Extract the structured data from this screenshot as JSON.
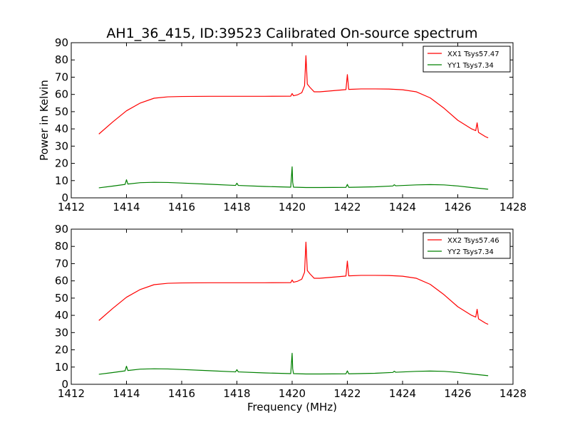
{
  "title": "AH1_36_415, ID:39523 Calibrated On-source spectrum",
  "chart_data": [
    {
      "type": "line",
      "xlabel": "",
      "ylabel": "Power in Kelvin",
      "xlim": [
        1412,
        1428
      ],
      "ylim": [
        0,
        90
      ],
      "xticks": [
        1412,
        1414,
        1416,
        1418,
        1420,
        1422,
        1424,
        1426,
        1428
      ],
      "yticks": [
        0,
        10,
        20,
        30,
        40,
        50,
        60,
        70,
        80,
        90
      ],
      "legend_position": "top-right",
      "grid": false,
      "series": [
        {
          "name": "XX1 Tsys57.47",
          "color": "#ff0000",
          "x": [
            1413.0,
            1413.5,
            1414.0,
            1414.5,
            1415.0,
            1415.5,
            1416.0,
            1417.0,
            1418.0,
            1419.0,
            1419.95,
            1420.0,
            1420.05,
            1420.2,
            1420.35,
            1420.45,
            1420.5,
            1420.55,
            1420.65,
            1420.8,
            1421.0,
            1421.5,
            1421.95,
            1422.0,
            1422.05,
            1422.5,
            1423.0,
            1423.5,
            1424.0,
            1424.5,
            1425.0,
            1425.5,
            1426.0,
            1426.5,
            1426.65,
            1426.7,
            1426.75,
            1427.0,
            1427.1
          ],
          "y": [
            37,
            44,
            50.5,
            55,
            57.8,
            58.6,
            58.8,
            58.9,
            58.9,
            58.9,
            59,
            60.5,
            59.2,
            59.8,
            61,
            65,
            82.5,
            66,
            64,
            61.5,
            61.5,
            62.2,
            62.8,
            71.5,
            62.9,
            63.2,
            63.2,
            63.1,
            62.7,
            61.5,
            58,
            52,
            45,
            40,
            39,
            43.5,
            38,
            35.5,
            34.8
          ]
        },
        {
          "name": "YY1 Tsys7.34",
          "color": "#008000",
          "x": [
            1413.0,
            1413.5,
            1413.95,
            1414.0,
            1414.05,
            1414.5,
            1415.0,
            1415.5,
            1416.0,
            1417.0,
            1417.95,
            1418.0,
            1418.05,
            1419.0,
            1419.95,
            1420.0,
            1420.02,
            1420.05,
            1420.5,
            1421.0,
            1421.95,
            1422.0,
            1422.05,
            1423.0,
            1423.65,
            1423.7,
            1423.75,
            1424.5,
            1425.0,
            1425.5,
            1426.0,
            1426.5,
            1427.1
          ],
          "y": [
            5.8,
            6.8,
            7.8,
            10.5,
            8.0,
            8.8,
            9.0,
            8.9,
            8.6,
            7.9,
            7.2,
            8.5,
            7.2,
            6.6,
            6.2,
            18.0,
            9.0,
            6.2,
            6.0,
            6.0,
            6.1,
            7.8,
            6.1,
            6.4,
            6.9,
            7.6,
            7.0,
            7.5,
            7.7,
            7.5,
            6.9,
            6.0,
            5.0
          ]
        }
      ]
    },
    {
      "type": "line",
      "xlabel": "Frequency (MHz)",
      "ylabel": "",
      "xlim": [
        1412,
        1428
      ],
      "ylim": [
        0,
        90
      ],
      "xticks": [
        1412,
        1414,
        1416,
        1418,
        1420,
        1422,
        1424,
        1426,
        1428
      ],
      "yticks": [
        0,
        10,
        20,
        30,
        40,
        50,
        60,
        70,
        80,
        90
      ],
      "legend_position": "top-right",
      "grid": false,
      "series": [
        {
          "name": "XX2 Tsys57.46",
          "color": "#ff0000",
          "x": [
            1413.0,
            1413.5,
            1414.0,
            1414.5,
            1415.0,
            1415.5,
            1416.0,
            1417.0,
            1418.0,
            1419.0,
            1419.95,
            1420.0,
            1420.05,
            1420.2,
            1420.35,
            1420.45,
            1420.5,
            1420.55,
            1420.65,
            1420.8,
            1421.0,
            1421.5,
            1421.95,
            1422.0,
            1422.05,
            1422.5,
            1423.0,
            1423.5,
            1424.0,
            1424.5,
            1425.0,
            1425.5,
            1426.0,
            1426.5,
            1426.65,
            1426.7,
            1426.75,
            1427.0,
            1427.1
          ],
          "y": [
            37,
            44,
            50.5,
            55,
            57.8,
            58.6,
            58.8,
            58.9,
            58.9,
            58.9,
            59,
            60.5,
            59.2,
            59.8,
            61,
            65,
            82.5,
            66,
            64,
            61.5,
            61.5,
            62.2,
            62.8,
            71.5,
            62.9,
            63.2,
            63.2,
            63.1,
            62.7,
            61.5,
            58,
            52,
            45,
            40,
            39,
            43.5,
            38,
            35.5,
            34.8
          ]
        },
        {
          "name": "YY2 Tsys7.34",
          "color": "#008000",
          "x": [
            1413.0,
            1413.5,
            1413.95,
            1414.0,
            1414.05,
            1414.5,
            1415.0,
            1415.5,
            1416.0,
            1417.0,
            1417.95,
            1418.0,
            1418.05,
            1419.0,
            1419.95,
            1420.0,
            1420.02,
            1420.05,
            1420.5,
            1421.0,
            1421.95,
            1422.0,
            1422.05,
            1423.0,
            1423.65,
            1423.7,
            1423.75,
            1424.5,
            1425.0,
            1425.5,
            1426.0,
            1426.5,
            1427.1
          ],
          "y": [
            5.8,
            6.8,
            7.8,
            10.5,
            8.0,
            8.8,
            9.0,
            8.9,
            8.6,
            7.9,
            7.2,
            8.5,
            7.2,
            6.6,
            6.2,
            18.0,
            9.0,
            6.2,
            6.0,
            6.0,
            6.1,
            7.8,
            6.1,
            6.4,
            6.9,
            7.6,
            7.0,
            7.5,
            7.7,
            7.5,
            6.9,
            6.0,
            5.0
          ]
        }
      ]
    }
  ]
}
